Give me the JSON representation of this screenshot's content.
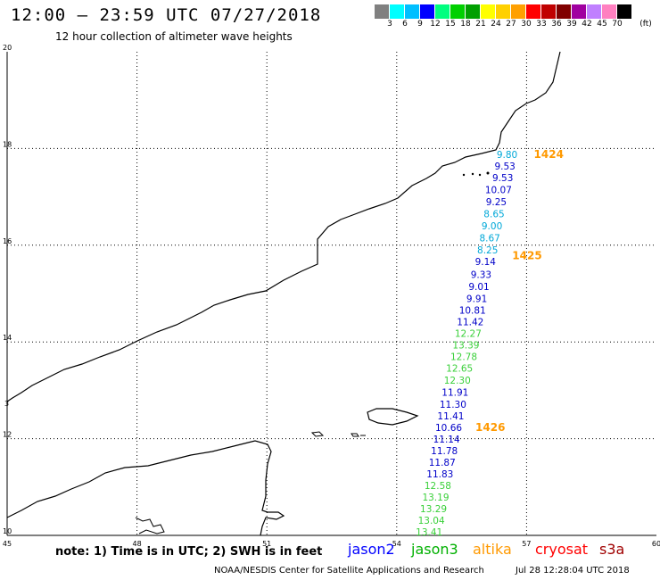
{
  "header": {
    "title": "12:00 – 23:59 UTC 07/27/2018",
    "subtitle": "12 hour collection of altimeter wave heights"
  },
  "color_scale": {
    "colors": [
      "#808080",
      "#00ffff",
      "#00bfff",
      "#0000ff",
      "#00ff7f",
      "#00d000",
      "#00a000",
      "#ffff00",
      "#ffd000",
      "#ffa000",
      "#ff0000",
      "#c00000",
      "#800000",
      "#a000a0",
      "#c080ff",
      "#ff80c0",
      "#000000"
    ],
    "labels": [
      "3",
      "6",
      "9",
      "12",
      "15",
      "18",
      "21",
      "24",
      "27",
      "30",
      "33",
      "36",
      "39",
      "42",
      "45",
      "70"
    ],
    "unit": "(ft)"
  },
  "axes": {
    "lon_ticks": [
      "45",
      "48",
      "51",
      "54",
      "57",
      "60"
    ],
    "lat_ticks": [
      "20",
      "18",
      "16",
      "14",
      "12",
      "10"
    ],
    "lat_minor": "3"
  },
  "tracks": {
    "colors": {
      "jason2": "#0000c8",
      "jason3": "#3ad03a",
      "s3a_cyan": "#00a8d8"
    },
    "time_color": "#ff9900",
    "times": [
      {
        "label": "1424",
        "lat": 17.88
      },
      {
        "label": "1425",
        "lat": 15.78
      },
      {
        "label": "1426",
        "lat": 12.23
      }
    ],
    "points": [
      {
        "v": "9.80",
        "lon": 56.55,
        "lat": 17.88,
        "c": "s3a_cyan"
      },
      {
        "v": "9.53",
        "lon": 56.5,
        "lat": 17.64,
        "c": "jason2"
      },
      {
        "v": "9.53",
        "lon": 56.45,
        "lat": 17.4,
        "c": "jason2"
      },
      {
        "v": "10.07",
        "lon": 56.35,
        "lat": 17.15,
        "c": "jason2"
      },
      {
        "v": "9.25",
        "lon": 56.3,
        "lat": 16.9,
        "c": "jason2"
      },
      {
        "v": "8.65",
        "lon": 56.25,
        "lat": 16.65,
        "c": "s3a_cyan"
      },
      {
        "v": "9.00",
        "lon": 56.2,
        "lat": 16.4,
        "c": "s3a_cyan"
      },
      {
        "v": "8.67",
        "lon": 56.15,
        "lat": 16.15,
        "c": "s3a_cyan"
      },
      {
        "v": "8.25",
        "lon": 56.1,
        "lat": 15.9,
        "c": "s3a_cyan"
      },
      {
        "v": "9.14",
        "lon": 56.05,
        "lat": 15.66,
        "c": "jason2"
      },
      {
        "v": "9.33",
        "lon": 55.95,
        "lat": 15.4,
        "c": "jason2"
      },
      {
        "v": "9.01",
        "lon": 55.9,
        "lat": 15.15,
        "c": "jason2"
      },
      {
        "v": "9.91",
        "lon": 55.85,
        "lat": 14.9,
        "c": "jason2"
      },
      {
        "v": "10.81",
        "lon": 55.75,
        "lat": 14.66,
        "c": "jason2"
      },
      {
        "v": "11.42",
        "lon": 55.7,
        "lat": 14.42,
        "c": "jason2"
      },
      {
        "v": "12.27",
        "lon": 55.65,
        "lat": 14.18,
        "c": "jason3"
      },
      {
        "v": "13.39",
        "lon": 55.6,
        "lat": 13.94,
        "c": "jason3"
      },
      {
        "v": "12.78",
        "lon": 55.55,
        "lat": 13.7,
        "c": "jason3"
      },
      {
        "v": "12.65",
        "lon": 55.45,
        "lat": 13.46,
        "c": "jason3"
      },
      {
        "v": "12.30",
        "lon": 55.4,
        "lat": 13.21,
        "c": "jason3"
      },
      {
        "v": "11.91",
        "lon": 55.35,
        "lat": 12.96,
        "c": "jason2"
      },
      {
        "v": "11.30",
        "lon": 55.3,
        "lat": 12.71,
        "c": "jason2"
      },
      {
        "v": "11.41",
        "lon": 55.25,
        "lat": 12.47,
        "c": "jason2"
      },
      {
        "v": "10.66",
        "lon": 55.2,
        "lat": 12.23,
        "c": "jason2"
      },
      {
        "v": "11.14",
        "lon": 55.15,
        "lat": 11.99,
        "c": "jason2"
      },
      {
        "v": "11.78",
        "lon": 55.1,
        "lat": 11.75,
        "c": "jason2"
      },
      {
        "v": "11.87",
        "lon": 55.05,
        "lat": 11.51,
        "c": "jason2"
      },
      {
        "v": "11.83",
        "lon": 55.0,
        "lat": 11.27,
        "c": "jason2"
      },
      {
        "v": "12.58",
        "lon": 54.95,
        "lat": 11.03,
        "c": "jason3"
      },
      {
        "v": "13.19",
        "lon": 54.9,
        "lat": 10.79,
        "c": "jason3"
      },
      {
        "v": "13.29",
        "lon": 54.85,
        "lat": 10.55,
        "c": "jason3"
      },
      {
        "v": "13.04",
        "lon": 54.8,
        "lat": 10.31,
        "c": "jason3"
      },
      {
        "v": "13.41",
        "lon": 54.75,
        "lat": 10.07,
        "c": "jason3"
      }
    ]
  },
  "footer": {
    "note": "note: 1) Time is in UTC; 2) SWH is in feet",
    "legend": [
      {
        "name": "jason2",
        "color": "#0000ff"
      },
      {
        "name": "jason3",
        "color": "#00b000"
      },
      {
        "name": "altika",
        "color": "#ff9900"
      },
      {
        "name": "cryosat",
        "color": "#ff0000"
      },
      {
        "name": "s3a",
        "color": "#a00000"
      }
    ],
    "credit": "NOAA/NESDIS Center for Satellite Applications and Research",
    "timestamp": "Jul 28 12:28:04 UTC 2018"
  }
}
